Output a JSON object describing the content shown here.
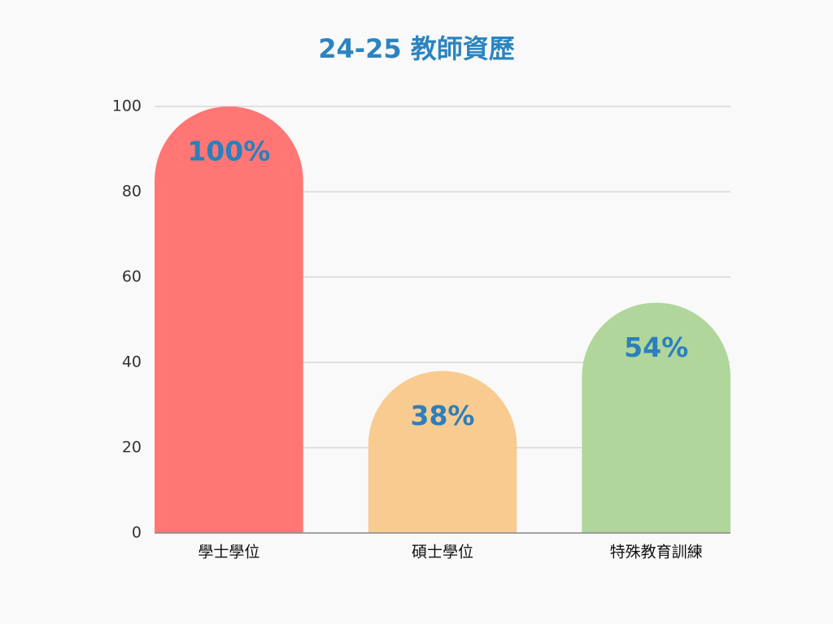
{
  "chart_data": {
    "type": "bar",
    "title": "24-25 教師資歷",
    "categories": [
      "學士學位",
      "碩士學位",
      "特殊教育訓練"
    ],
    "values": [
      100,
      38,
      54
    ],
    "value_labels": [
      "100%",
      "38%",
      "54%"
    ],
    "colors": [
      "#ff7675",
      "#f8cb90",
      "#b0d69b"
    ],
    "ylim": [
      0,
      100
    ],
    "yticks": [
      0,
      20,
      40,
      60,
      80,
      100
    ],
    "grid": true
  }
}
